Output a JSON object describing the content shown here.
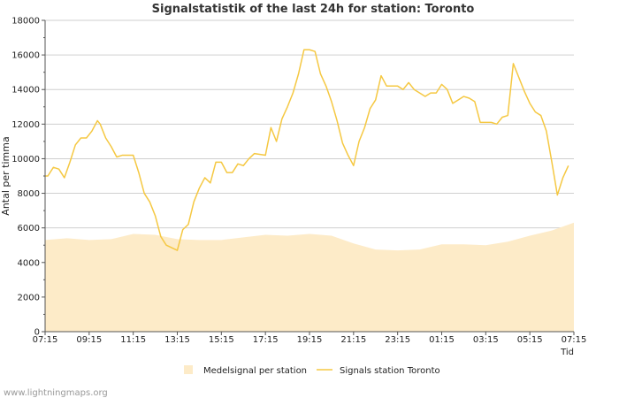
{
  "chart_data": {
    "type": "line",
    "title": "Signalstatistik of the last 24h for station: Toronto",
    "ylabel": "Antal per timma",
    "xlabel": "Tid",
    "ylim": [
      0,
      18000
    ],
    "yticks": [
      0,
      2000,
      4000,
      6000,
      8000,
      10000,
      12000,
      14000,
      16000,
      18000
    ],
    "xlim": [
      0,
      96
    ],
    "xticks": [
      {
        "x": 0,
        "label": "07:15"
      },
      {
        "x": 8,
        "label": "09:15"
      },
      {
        "x": 16,
        "label": "11:15"
      },
      {
        "x": 24,
        "label": "13:15"
      },
      {
        "x": 32,
        "label": "15:15"
      },
      {
        "x": 40,
        "label": "17:15"
      },
      {
        "x": 48,
        "label": "19:15"
      },
      {
        "x": 56,
        "label": "21:15"
      },
      {
        "x": 64,
        "label": "23:15"
      },
      {
        "x": 72,
        "label": "01:15"
      },
      {
        "x": 80,
        "label": "03:15"
      },
      {
        "x": 88,
        "label": "05:15"
      },
      {
        "x": 96,
        "label": "07:15"
      }
    ],
    "series": [
      {
        "name": "Medelsignal per station",
        "style": "area",
        "color": "#fdebc8",
        "points": [
          [
            0,
            5300
          ],
          [
            4,
            5400
          ],
          [
            8,
            5300
          ],
          [
            12,
            5350
          ],
          [
            16,
            5650
          ],
          [
            20,
            5600
          ],
          [
            24,
            5350
          ],
          [
            28,
            5300
          ],
          [
            32,
            5300
          ],
          [
            36,
            5450
          ],
          [
            40,
            5600
          ],
          [
            44,
            5550
          ],
          [
            48,
            5650
          ],
          [
            52,
            5550
          ],
          [
            56,
            5100
          ],
          [
            60,
            4750
          ],
          [
            64,
            4700
          ],
          [
            68,
            4750
          ],
          [
            72,
            5050
          ],
          [
            76,
            5050
          ],
          [
            80,
            5000
          ],
          [
            84,
            5200
          ],
          [
            88,
            5550
          ],
          [
            92,
            5850
          ],
          [
            96,
            6300
          ]
        ]
      },
      {
        "name": "Signals station Toronto",
        "style": "line",
        "color": "#f5c842",
        "points": [
          [
            0,
            9000
          ],
          [
            0.5,
            9000
          ],
          [
            1.5,
            9500
          ],
          [
            2.5,
            9400
          ],
          [
            3.5,
            8900
          ],
          [
            4.5,
            9800
          ],
          [
            5.5,
            10800
          ],
          [
            6.5,
            11200
          ],
          [
            7.5,
            11200
          ],
          [
            8.5,
            11600
          ],
          [
            9.5,
            12200
          ],
          [
            10,
            12000
          ],
          [
            11,
            11200
          ],
          [
            12,
            10700
          ],
          [
            13,
            10100
          ],
          [
            14,
            10200
          ],
          [
            15,
            10200
          ],
          [
            16,
            10200
          ],
          [
            17,
            9200
          ],
          [
            18,
            8000
          ],
          [
            19,
            7500
          ],
          [
            20,
            6700
          ],
          [
            21,
            5500
          ],
          [
            22,
            5000
          ],
          [
            24,
            4700
          ],
          [
            25,
            5900
          ],
          [
            26,
            6200
          ],
          [
            27,
            7500
          ],
          [
            28,
            8300
          ],
          [
            29,
            8900
          ],
          [
            30,
            8600
          ],
          [
            31,
            9800
          ],
          [
            32,
            9800
          ],
          [
            33,
            9200
          ],
          [
            34,
            9200
          ],
          [
            35,
            9700
          ],
          [
            36,
            9600
          ],
          [
            37,
            10000
          ],
          [
            38,
            10300
          ],
          [
            40,
            10200
          ],
          [
            41,
            11800
          ],
          [
            42,
            11000
          ],
          [
            43,
            12300
          ],
          [
            44,
            13000
          ],
          [
            45,
            13800
          ],
          [
            46,
            14900
          ],
          [
            47,
            16300
          ],
          [
            48,
            16300
          ],
          [
            49,
            16200
          ],
          [
            50,
            14900
          ],
          [
            51,
            14200
          ],
          [
            52,
            13300
          ],
          [
            53,
            12200
          ],
          [
            54,
            10900
          ],
          [
            55,
            10200
          ],
          [
            56,
            9600
          ],
          [
            57,
            11000
          ],
          [
            58,
            11800
          ],
          [
            59,
            12900
          ],
          [
            60,
            13400
          ],
          [
            61,
            14800
          ],
          [
            62,
            14200
          ],
          [
            64,
            14200
          ],
          [
            65,
            14000
          ],
          [
            66,
            14400
          ],
          [
            67,
            14000
          ],
          [
            68,
            13800
          ],
          [
            69,
            13600
          ],
          [
            70,
            13800
          ],
          [
            71,
            13800
          ],
          [
            72,
            14300
          ],
          [
            73,
            14000
          ],
          [
            74,
            13200
          ],
          [
            75,
            13400
          ],
          [
            76,
            13600
          ],
          [
            77,
            13500
          ],
          [
            78,
            13300
          ],
          [
            79,
            12100
          ],
          [
            81,
            12100
          ],
          [
            82,
            12000
          ],
          [
            83,
            12400
          ],
          [
            84,
            12500
          ],
          [
            85,
            15500
          ],
          [
            86,
            14700
          ],
          [
            87,
            13900
          ],
          [
            88,
            13200
          ],
          [
            89,
            12700
          ],
          [
            90,
            12500
          ],
          [
            91,
            11600
          ],
          [
            92,
            9800
          ],
          [
            93,
            7900
          ],
          [
            94,
            8900
          ],
          [
            95,
            9600
          ]
        ]
      }
    ]
  },
  "credit": "www.lightningmaps.org"
}
